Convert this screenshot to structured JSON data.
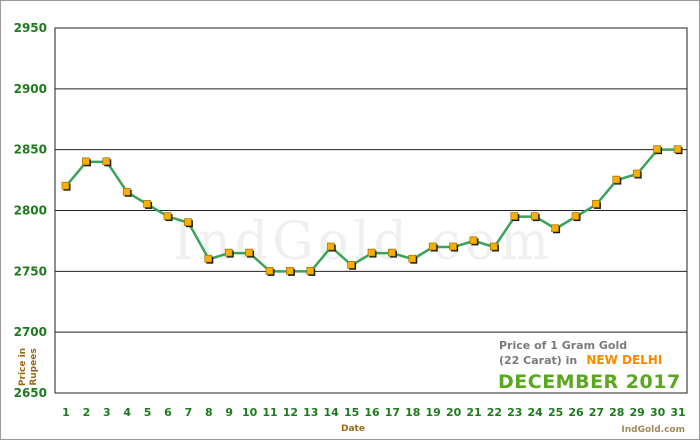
{
  "chart_data": {
    "type": "line",
    "title": "Price of 1 Gram Gold",
    "subtitle_prefix": "(22 Carat) in",
    "city": "NEW DELHI",
    "period": "DECEMBER 2017",
    "xlabel": "Date",
    "ylabel_line1": "Price in",
    "ylabel_line2": "Rupees",
    "watermark": "IndGold.com",
    "credit": "IndGold.com",
    "ylim": [
      2650,
      2950
    ],
    "yticks": [
      2650,
      2700,
      2750,
      2800,
      2850,
      2900,
      2950
    ],
    "grid": true,
    "x": [
      1,
      2,
      3,
      4,
      5,
      6,
      7,
      8,
      9,
      10,
      11,
      12,
      13,
      14,
      15,
      16,
      17,
      18,
      19,
      20,
      21,
      22,
      23,
      24,
      25,
      26,
      27,
      28,
      29,
      30,
      31
    ],
    "values": [
      2820,
      2840,
      2840,
      2815,
      2805,
      2795,
      2790,
      2760,
      2765,
      2765,
      2750,
      2750,
      2750,
      2770,
      2755,
      2765,
      2765,
      2760,
      2770,
      2770,
      2775,
      2770,
      2795,
      2795,
      2785,
      2795,
      2805,
      2825,
      2830,
      2850,
      2850
    ],
    "colors": {
      "line": "#3aa35a",
      "marker": "#f5b000",
      "marker_shadow": "#1a1a1a",
      "grid": "#222222"
    }
  }
}
